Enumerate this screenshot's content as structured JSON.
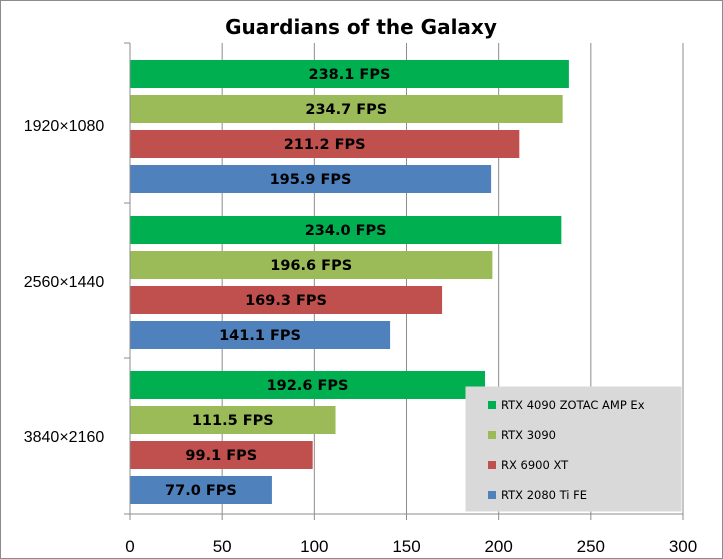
{
  "chart_data": {
    "type": "bar",
    "orientation": "horizontal",
    "title": "Guardians of the Galaxy",
    "xlabel": "",
    "ylabel": "",
    "xlim": [
      0,
      300
    ],
    "x_ticks": [
      0,
      50,
      100,
      150,
      200,
      250,
      300
    ],
    "grid": "vertical gridlines",
    "legend_position": "bottom-right (inside plot)",
    "categories": [
      "1920×1080",
      "2560×1440",
      "3840×2160"
    ],
    "value_suffix": " FPS",
    "series": [
      {
        "name": "RTX 4090 ZOTAC AMP Ex",
        "color": "#00b050",
        "values": [
          238.1,
          234.0,
          192.6
        ]
      },
      {
        "name": "RTX 3090",
        "color": "#9bbb59",
        "values": [
          234.7,
          196.6,
          111.5
        ]
      },
      {
        "name": "RX 6900 XT",
        "color": "#c0504d",
        "values": [
          211.2,
          169.3,
          99.1
        ]
      },
      {
        "name": "RTX 2080 Ti FE",
        "color": "#4f81bd",
        "values": [
          195.9,
          141.1,
          77.0
        ]
      }
    ]
  }
}
